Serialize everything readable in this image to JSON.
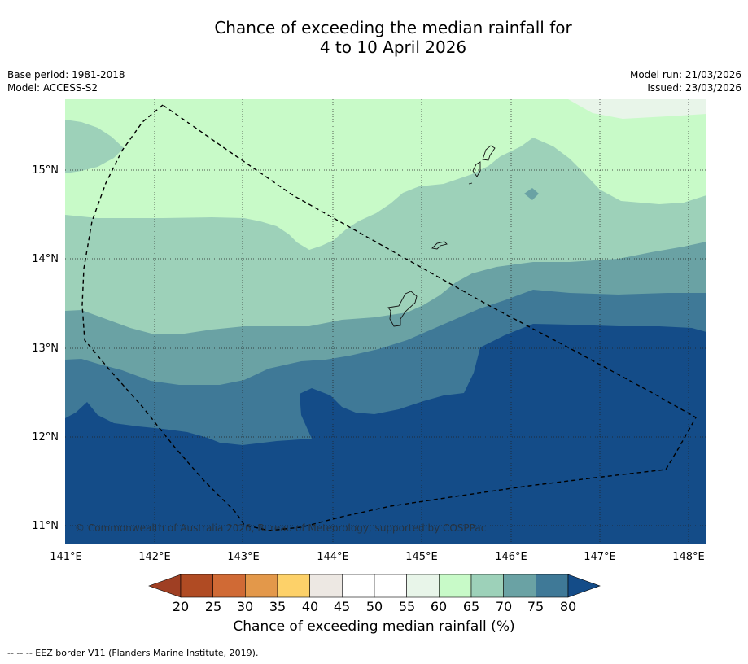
{
  "title": {
    "line1": "Chance of exceeding the median rainfall for",
    "line2": "4 to 10 April 2026"
  },
  "meta": {
    "base_period": "Base period: 1981-2018",
    "model": "Model: ACCESS-S2",
    "model_run": "Model run: 21/03/2026",
    "issued": "Issued: 23/03/2026"
  },
  "map": {
    "lon_labels": [
      "141°E",
      "142°E",
      "143°E",
      "144°E",
      "145°E",
      "146°E",
      "147°E",
      "148°E"
    ],
    "lat_labels": [
      "15°N",
      "14°N",
      "13°N",
      "12°N",
      "11°N"
    ],
    "copyright": "© Commonwealth of Australia 2026, Bureau of Meteorology, supported by COSPPac",
    "band_colors": {
      "p55_60": "#e8f5e9",
      "p60_65": "#c8fac8",
      "p65_70": "#9dd1b9",
      "p70_75": "#6aa2a4",
      "p75_80": "#3f7997",
      "p80_plus": "#144c88"
    }
  },
  "colorbar": {
    "title": "Chance of exceeding median rainfall (%)",
    "ticks": [
      "20",
      "25",
      "30",
      "35",
      "40",
      "45",
      "50",
      "55",
      "60",
      "65",
      "70",
      "75",
      "80"
    ],
    "colors": {
      "under": "#9f3f23",
      "c20_25": "#b04b23",
      "c25_30": "#d06a35",
      "c30_35": "#e3984a",
      "c35_40": "#fdd169",
      "c40_45": "#ede8e3",
      "c45_50": "#ffffff",
      "c50_55": "#ffffff",
      "c55_60": "#e8f5e9",
      "c60_65": "#c8fac8",
      "c65_70": "#9dd1b9",
      "c70_75": "#6aa2a4",
      "c75_80": "#3f7997",
      "over": "#144c88"
    }
  },
  "footer": {
    "legend": "--  --  -- EEZ border V11 (Flanders Marine Institute, 2019)."
  }
}
